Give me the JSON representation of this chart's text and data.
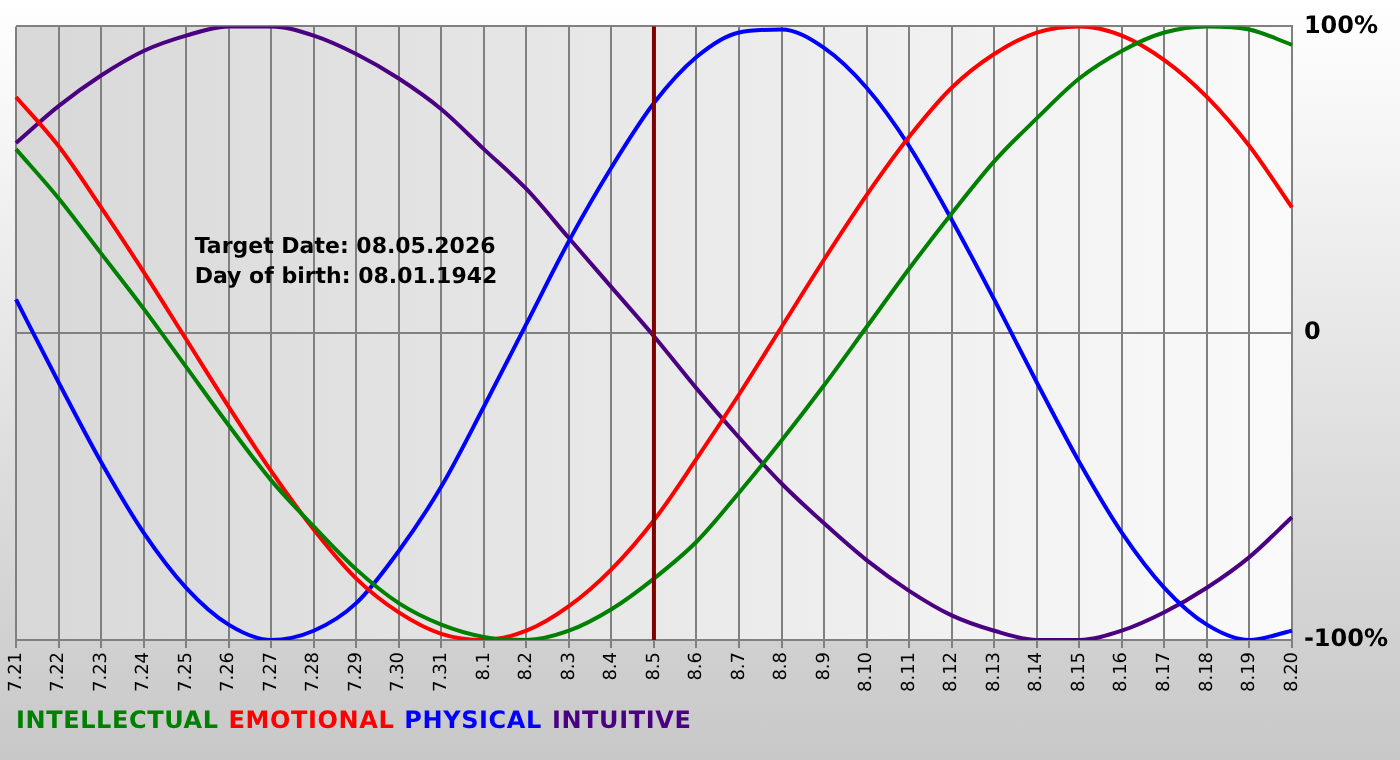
{
  "chart_data": {
    "type": "line",
    "categories": [
      "7.21",
      "7.22",
      "7.23",
      "7.24",
      "7.25",
      "7.26",
      "7.27",
      "7.28",
      "7.29",
      "7.30",
      "7.31",
      "8.1",
      "8.2",
      "8.3",
      "8.4",
      "8.5",
      "8.6",
      "8.7",
      "8.8",
      "8.9",
      "8.10",
      "8.11",
      "8.12",
      "8.13",
      "8.14",
      "8.15",
      "8.16",
      "8.17",
      "8.18",
      "8.19",
      "8.20"
    ],
    "series": [
      {
        "name": "INTELLECTUAL",
        "color": "#008000",
        "values": [
          60,
          44,
          26,
          8,
          -11,
          -30,
          -48,
          -63,
          -77,
          -88,
          -95,
          -99,
          -100,
          -97,
          -90,
          -80,
          -68,
          -52,
          -35,
          -17,
          2,
          21,
          39,
          56,
          70,
          83,
          92,
          98,
          100,
          99,
          94
        ]
      },
      {
        "name": "EMOTIONAL",
        "color": "#ff0000",
        "values": [
          77,
          61,
          41,
          20,
          -2,
          -24,
          -45,
          -64,
          -80,
          -91,
          -98,
          -100,
          -97,
          -89,
          -77,
          -61,
          -41,
          -20,
          2,
          24,
          45,
          64,
          80,
          91,
          98,
          100,
          97,
          89,
          77,
          61,
          41
        ]
      },
      {
        "name": "PHYSICAL",
        "color": "#0000ff",
        "values": [
          11,
          -16,
          -42,
          -65,
          -83,
          -95,
          -100,
          -97,
          -88,
          -71,
          -50,
          -24,
          3,
          30,
          54,
          75,
          90,
          98,
          99,
          93,
          80,
          61,
          37,
          11,
          -16,
          -42,
          -65,
          -83,
          -95,
          -100,
          -97
        ]
      },
      {
        "name": "INTUITIVE",
        "color": "#4b0082",
        "values": [
          62,
          74,
          84,
          92,
          97,
          100,
          100,
          97,
          91,
          83,
          73,
          60,
          47,
          31,
          15,
          -1,
          -18,
          -34,
          -49,
          -62,
          -74,
          -84,
          -92,
          -97,
          -100,
          -100,
          -97,
          -91,
          -83,
          -73,
          -60
        ]
      }
    ],
    "ylim": [
      -100,
      100
    ],
    "yticks": [
      {
        "value": 100,
        "label": "100%"
      },
      0,
      {
        "value": -100,
        "label": "-100%"
      }
    ],
    "ref_lines": [
      {
        "axis": "x",
        "value": "8.5",
        "color": "#800000"
      }
    ],
    "annotations": [
      "Target Date: 08.05.2026",
      "Day of birth: 08.01.1942"
    ],
    "grid": true,
    "legend": "bottom left",
    "marker": "none",
    "line_style": "solid"
  }
}
